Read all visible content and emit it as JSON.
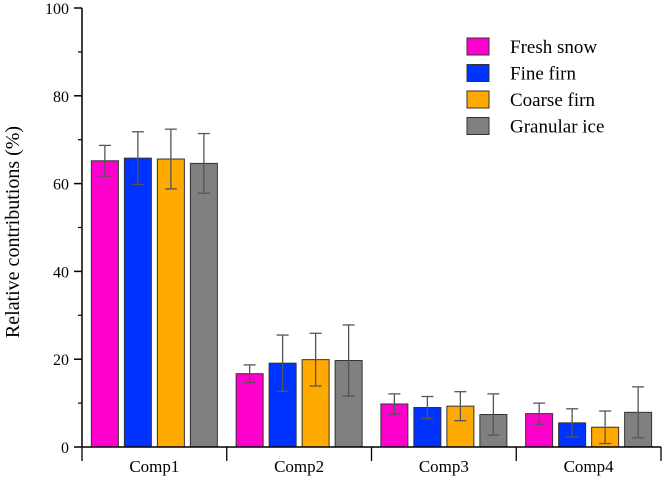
{
  "chart_data": {
    "type": "bar",
    "title": "",
    "xlabel": "",
    "ylabel": "Relative contributions (%)",
    "ylim": [
      0,
      100
    ],
    "yticks": [
      0,
      20,
      40,
      60,
      80,
      100
    ],
    "grid": false,
    "legend_position": "top-right",
    "categories": [
      "Comp1",
      "Comp2",
      "Comp3",
      "Comp4"
    ],
    "series": [
      {
        "name": "Fresh snow",
        "color": "#ff00cc",
        "values": [
          65.2,
          16.7,
          9.8,
          7.6
        ],
        "errors": [
          3.5,
          2.0,
          2.3,
          2.4
        ]
      },
      {
        "name": "Fine firn",
        "color": "#0033ff",
        "values": [
          65.8,
          19.1,
          9.0,
          5.5
        ],
        "errors": [
          6.0,
          6.4,
          2.5,
          3.2
        ]
      },
      {
        "name": "Coarse firn",
        "color": "#ffaa00",
        "values": [
          65.6,
          19.9,
          9.3,
          4.5
        ],
        "errors": [
          6.8,
          6.0,
          3.3,
          3.7
        ]
      },
      {
        "name": "Granular ice",
        "color": "#808080",
        "values": [
          64.6,
          19.7,
          7.4,
          7.9
        ],
        "errors": [
          6.8,
          8.1,
          4.7,
          5.8
        ]
      }
    ]
  }
}
